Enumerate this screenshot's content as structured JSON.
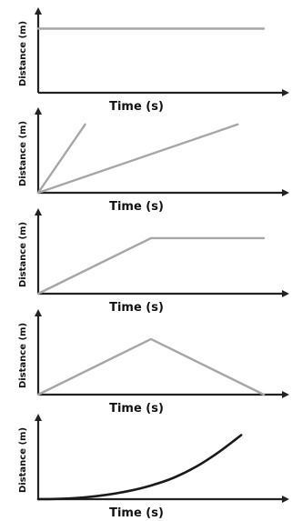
{
  "colors": {
    "axis": "#222222",
    "line": "#a6a6a6",
    "curve": "#1a1a1a"
  },
  "chart_data": [
    {
      "type": "line",
      "xlabel": "Time (s)",
      "ylabel": "Distance (m)",
      "xlim": [
        0,
        10
      ],
      "ylim": [
        0,
        10
      ],
      "series": [
        {
          "x": [
            0,
            10
          ],
          "y": [
            7.5,
            7.5
          ],
          "color": "#a6a6a6"
        }
      ]
    },
    {
      "type": "line",
      "xlabel": "Time (s)",
      "ylabel": "Distance (m)",
      "xlim": [
        0,
        10
      ],
      "ylim": [
        0,
        10
      ],
      "series": [
        {
          "x": [
            0,
            2
          ],
          "y": [
            0,
            8
          ],
          "color": "#a6a6a6"
        },
        {
          "x": [
            0,
            8.5
          ],
          "y": [
            0,
            8
          ],
          "color": "#a6a6a6"
        }
      ]
    },
    {
      "type": "line",
      "xlabel": "Time (s)",
      "ylabel": "Distance (m)",
      "xlim": [
        0,
        10
      ],
      "ylim": [
        0,
        10
      ],
      "series": [
        {
          "x": [
            0,
            5,
            10
          ],
          "y": [
            0,
            6.5,
            6.5
          ],
          "color": "#a6a6a6"
        }
      ]
    },
    {
      "type": "line",
      "xlabel": "Time (s)",
      "ylabel": "Distance (m)",
      "xlim": [
        0,
        10
      ],
      "ylim": [
        0,
        10
      ],
      "series": [
        {
          "x": [
            0,
            5,
            10
          ],
          "y": [
            0,
            6.5,
            0
          ],
          "color": "#a6a6a6"
        }
      ]
    },
    {
      "type": "line",
      "xlabel": "Time (s)",
      "ylabel": "Distance (m)",
      "xlim": [
        0,
        10
      ],
      "ylim": [
        0,
        10
      ],
      "series": [
        {
          "x": [
            0,
            1,
            2,
            3,
            4,
            5,
            6,
            7,
            8,
            9
          ],
          "y": [
            0,
            0.05,
            0.2,
            0.5,
            0.95,
            1.6,
            2.5,
            3.8,
            5.5,
            7.5
          ],
          "color": "#1a1a1a"
        }
      ]
    }
  ]
}
